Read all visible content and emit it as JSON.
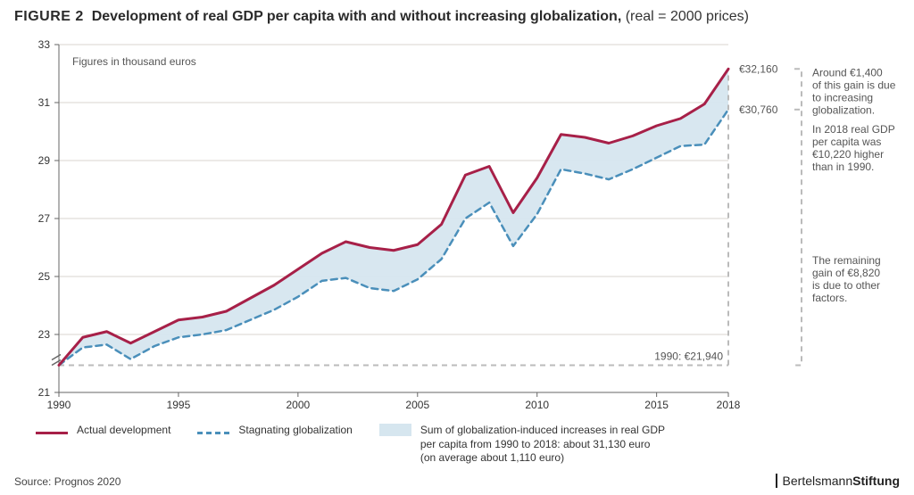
{
  "figure_label": "FIGURE 2",
  "title_main": "Development of real GDP per capita with and without increasing globalization,",
  "title_paren": "(real = 2000 prices)",
  "y_subtitle": "Figures in thousand euros",
  "chart": {
    "type": "line",
    "xlim": [
      1990,
      2018
    ],
    "ylim": [
      21,
      33
    ],
    "ytick_step": 2,
    "x_ticks": [
      1990,
      1995,
      2000,
      2005,
      2010,
      2015,
      2018
    ],
    "y_ticks": [
      21,
      23,
      25,
      27,
      29,
      31,
      33
    ],
    "grid_color": "#d9d5cf",
    "background_color": "#ffffff",
    "series": {
      "actual": {
        "label": "Actual development",
        "color": "#a72048",
        "line_width": 3,
        "years": [
          1990,
          1991,
          1992,
          1993,
          1994,
          1995,
          1996,
          1997,
          1998,
          1999,
          2000,
          2001,
          2002,
          2003,
          2004,
          2005,
          2006,
          2007,
          2008,
          2009,
          2010,
          2011,
          2012,
          2013,
          2014,
          2015,
          2016,
          2017,
          2018
        ],
        "values": [
          21.94,
          22.9,
          23.1,
          22.7,
          23.1,
          23.5,
          23.6,
          23.8,
          24.25,
          24.7,
          25.25,
          25.8,
          26.2,
          26.0,
          25.9,
          26.1,
          26.8,
          28.5,
          28.8,
          27.2,
          28.4,
          29.9,
          29.8,
          29.6,
          29.85,
          30.2,
          30.45,
          30.95,
          32.16
        ]
      },
      "stagnating": {
        "label": "Stagnating globalization",
        "color": "#4a8fba",
        "line_width": 2.5,
        "dash": "7 5",
        "years": [
          1990,
          1991,
          1992,
          1993,
          1994,
          1995,
          1996,
          1997,
          1998,
          1999,
          2000,
          2001,
          2002,
          2003,
          2004,
          2005,
          2006,
          2007,
          2008,
          2009,
          2010,
          2011,
          2012,
          2013,
          2014,
          2015,
          2016,
          2017,
          2018
        ],
        "values": [
          21.94,
          22.55,
          22.65,
          22.15,
          22.6,
          22.9,
          23.0,
          23.15,
          23.5,
          23.85,
          24.3,
          24.85,
          24.95,
          24.6,
          24.5,
          24.9,
          25.6,
          27.0,
          27.55,
          26.05,
          27.15,
          28.7,
          28.55,
          28.35,
          28.7,
          29.1,
          29.5,
          29.55,
          30.76
        ]
      }
    },
    "area_fill_color": "#d6e6ef",
    "area_label": "Sum of globalization-induced increases in real GDP per capita from 1990 to 2018: about 31,130 euro (on average about 1,110 euro)"
  },
  "baseline": {
    "year": 1990,
    "value": 21.94,
    "label": "1990: €21,940"
  },
  "end_values": {
    "actual": "€32,160",
    "stagnating": "€30,760"
  },
  "annotations": {
    "top": [
      "Around €1,400",
      "of this gain is due",
      "to increasing",
      "globalization."
    ],
    "mid": [
      "In 2018 real GDP",
      "per capita was",
      "€10,220 higher",
      "than in 1990."
    ],
    "bottom": [
      "The remaining",
      "gain of €8,820",
      "is due to other",
      "factors."
    ]
  },
  "legend": {
    "actual": "Actual development",
    "stagnating": "Stagnating globalization",
    "area_lines": [
      "Sum of globalization-induced increases in real GDP",
      "per capita from 1990 to 2018: about 31,130 euro",
      "(on average about 1,110 euro)"
    ]
  },
  "source": "Source: Prognos 2020",
  "brand_a": "Bertelsmann",
  "brand_b": "Stiftung"
}
